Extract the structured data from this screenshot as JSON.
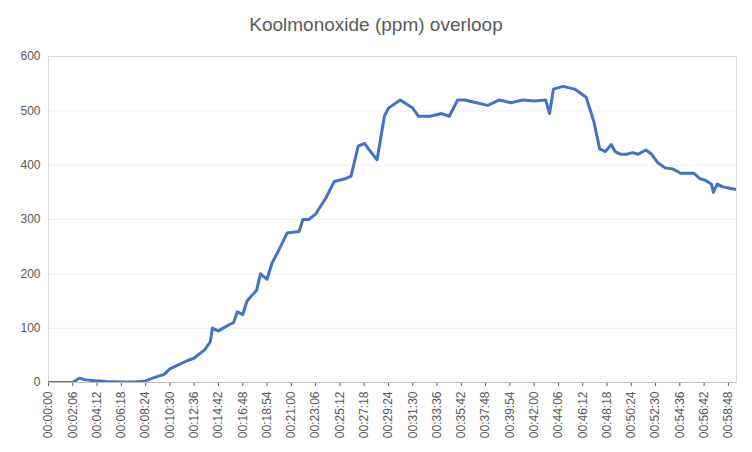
{
  "chart_data": {
    "type": "line",
    "title": "Koolmonoxide (ppm) overloop",
    "x": [
      0,
      60,
      126,
      160,
      190,
      252,
      300,
      378,
      450,
      504,
      540,
      600,
      630,
      660,
      720,
      756,
      810,
      840,
      850,
      882,
      930,
      960,
      980,
      1008,
      1030,
      1080,
      1100,
      1134,
      1160,
      1190,
      1238,
      1300,
      1320,
      1350,
      1386,
      1440,
      1483,
      1540,
      1570,
      1607,
      1640,
      1660,
      1705,
      1743,
      1764,
      1825,
      1890,
      1920,
      1980,
      2040,
      2080,
      2123,
      2160,
      2220,
      2280,
      2340,
      2400,
      2460,
      2520,
      2580,
      2600,
      2620,
      2670,
      2730,
      2790,
      2830,
      2860,
      2890,
      2920,
      2940,
      2970,
      3000,
      3030,
      3060,
      3100,
      3130,
      3160,
      3200,
      3240,
      3280,
      3320,
      3350,
      3380,
      3410,
      3440,
      3450,
      3470,
      3500,
      3540,
      3570
    ],
    "values": [
      0,
      0,
      0,
      8,
      5,
      3,
      2,
      1,
      1,
      3,
      8,
      15,
      25,
      30,
      40,
      45,
      60,
      75,
      100,
      95,
      105,
      110,
      130,
      125,
      150,
      170,
      200,
      190,
      220,
      240,
      275,
      278,
      300,
      300,
      310,
      340,
      370,
      375,
      380,
      435,
      440,
      430,
      410,
      490,
      505,
      520,
      505,
      490,
      490,
      495,
      490,
      520,
      520,
      515,
      510,
      520,
      515,
      520,
      518,
      520,
      495,
      540,
      545,
      540,
      525,
      480,
      430,
      425,
      438,
      425,
      420,
      420,
      423,
      420,
      428,
      420,
      405,
      395,
      393,
      385,
      385,
      385,
      375,
      372,
      365,
      350,
      365,
      360,
      357,
      355
    ],
    "color": "#4472c4",
    "xlim": [
      0,
      3570
    ],
    "xticks": [
      {
        "value": 0,
        "label": "00:00:00"
      },
      {
        "value": 126,
        "label": "00:02:06"
      },
      {
        "value": 252,
        "label": "00:04:12"
      },
      {
        "value": 378,
        "label": "00:06:18"
      },
      {
        "value": 504,
        "label": "00:08:24"
      },
      {
        "value": 630,
        "label": "00:10:30"
      },
      {
        "value": 756,
        "label": "00:12:36"
      },
      {
        "value": 882,
        "label": "00:14:42"
      },
      {
        "value": 1008,
        "label": "00:16:48"
      },
      {
        "value": 1134,
        "label": "00:18:54"
      },
      {
        "value": 1260,
        "label": "00:21:00"
      },
      {
        "value": 1386,
        "label": "00:23:06"
      },
      {
        "value": 1512,
        "label": "00:25:12"
      },
      {
        "value": 1638,
        "label": "00:27:18"
      },
      {
        "value": 1764,
        "label": "00:29:24"
      },
      {
        "value": 1890,
        "label": "00:31:30"
      },
      {
        "value": 2016,
        "label": "00:33:36"
      },
      {
        "value": 2142,
        "label": "00:35:42"
      },
      {
        "value": 2268,
        "label": "00:37:48"
      },
      {
        "value": 2394,
        "label": "00:39:54"
      },
      {
        "value": 2520,
        "label": "00:42:00"
      },
      {
        "value": 2646,
        "label": "00:44:06"
      },
      {
        "value": 2772,
        "label": "00:46:12"
      },
      {
        "value": 2898,
        "label": "00:48:18"
      },
      {
        "value": 3024,
        "label": "00:50:24"
      },
      {
        "value": 3150,
        "label": "00:52:30"
      },
      {
        "value": 3276,
        "label": "00:54:36"
      },
      {
        "value": 3402,
        "label": "00:56:42"
      },
      {
        "value": 3528,
        "label": "00:58:48"
      }
    ],
    "ylim": [
      0,
      600
    ],
    "yticks": [
      0,
      100,
      200,
      300,
      400,
      500,
      600
    ],
    "grid": true
  }
}
